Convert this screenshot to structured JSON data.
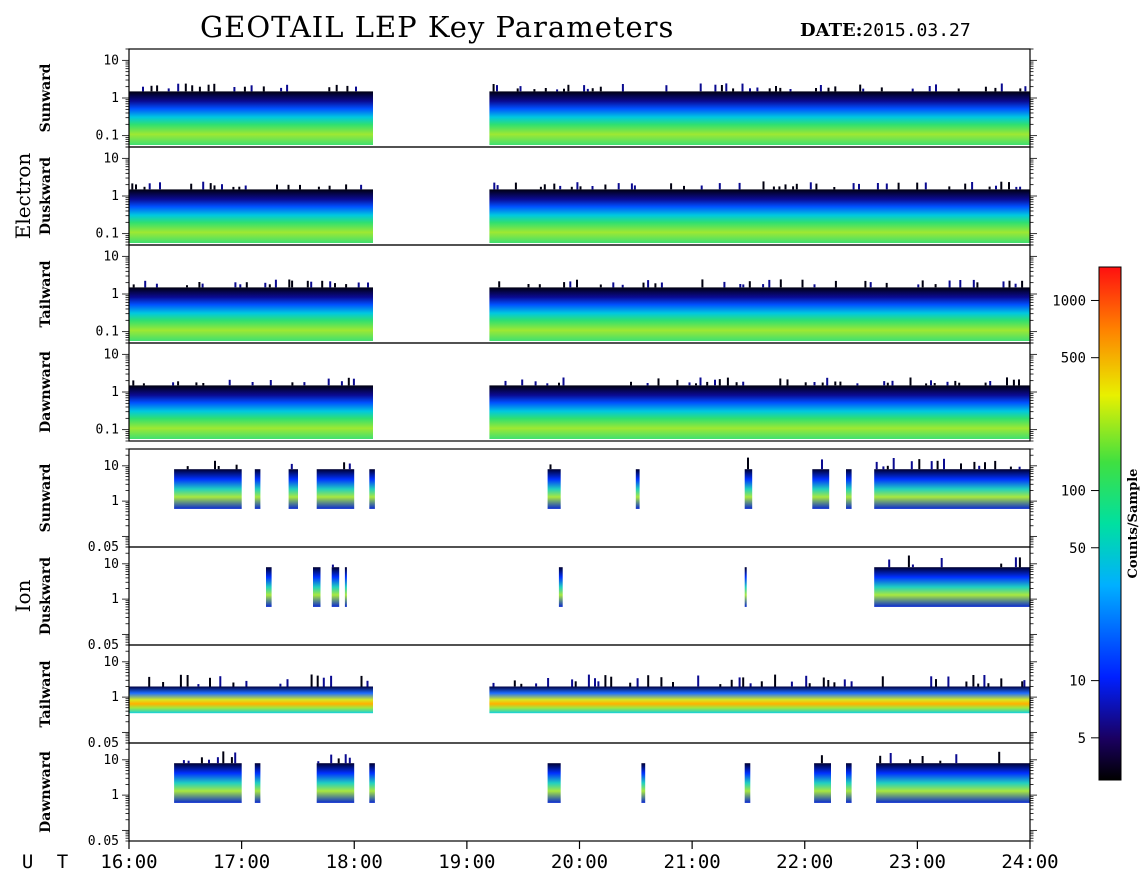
{
  "header": {
    "title": "GEOTAIL LEP Key Parameters",
    "date_label": "DATE:",
    "date_value": "2015.03.27"
  },
  "chart_data": {
    "type": "heatmap",
    "title": "GEOTAIL LEP Key Parameters",
    "date": "2015.03.27",
    "x_axis": {
      "label": "U T",
      "range": [
        "16:00",
        "24:00"
      ],
      "ticks": [
        "16:00",
        "17:00",
        "18:00",
        "19:00",
        "20:00",
        "21:00",
        "22:00",
        "23:00",
        "24:00"
      ]
    },
    "data_gap": [
      "18:10",
      "19:12"
    ],
    "groups": [
      {
        "name": "Electron",
        "y_range": [
          0.05,
          20
        ],
        "y_ticks": [
          "10",
          "1",
          "0.1"
        ],
        "panels": [
          {
            "name": "Sunward",
            "coverage": [
              [
                "16:00",
                "18:10"
              ],
              [
                "19:12",
                "24:00"
              ]
            ]
          },
          {
            "name": "Duskward",
            "coverage": [
              [
                "16:00",
                "18:10"
              ],
              [
                "19:12",
                "24:00"
              ]
            ]
          },
          {
            "name": "Tailward",
            "coverage": [
              [
                "16:00",
                "18:10"
              ],
              [
                "19:12",
                "24:00"
              ]
            ]
          },
          {
            "name": "Dawnward",
            "coverage": [
              [
                "16:00",
                "18:10"
              ],
              [
                "19:12",
                "24:00"
              ]
            ]
          }
        ]
      },
      {
        "name": "Ion",
        "y_range": [
          0.05,
          30
        ],
        "y_ticks": [
          "10",
          "1",
          "0.05"
        ],
        "panels": [
          {
            "name": "Sunward",
            "coverage": [
              [
                "16:24",
                "17:00"
              ],
              [
                "17:07",
                "17:10"
              ],
              [
                "17:25",
                "17:30"
              ],
              [
                "17:40",
                "18:00"
              ],
              [
                "18:08",
                "18:11"
              ],
              [
                "19:43",
                "19:50"
              ],
              [
                "20:30",
                "20:32"
              ],
              [
                "21:28",
                "21:32"
              ],
              [
                "22:04",
                "22:13"
              ],
              [
                "22:22",
                "22:25"
              ],
              [
                "22:37",
                "24:00"
              ]
            ]
          },
          {
            "name": "Duskward",
            "coverage": [
              [
                "17:13",
                "17:16"
              ],
              [
                "17:38",
                "17:42"
              ],
              [
                "17:48",
                "17:52"
              ],
              [
                "17:55",
                "17:56"
              ],
              [
                "19:49",
                "19:51"
              ],
              [
                "21:28",
                "21:29"
              ],
              [
                "22:37",
                "24:00"
              ]
            ]
          },
          {
            "name": "Tailward",
            "coverage": [
              [
                "16:00",
                "18:10"
              ],
              [
                "19:12",
                "24:00"
              ]
            ]
          },
          {
            "name": "Dawnward",
            "coverage": [
              [
                "16:24",
                "17:00"
              ],
              [
                "17:07",
                "17:10"
              ],
              [
                "17:40",
                "18:00"
              ],
              [
                "18:08",
                "18:11"
              ],
              [
                "19:43",
                "19:50"
              ],
              [
                "20:33",
                "20:35"
              ],
              [
                "21:28",
                "21:31"
              ],
              [
                "22:05",
                "22:14"
              ],
              [
                "22:22",
                "22:25"
              ],
              [
                "22:38",
                "24:00"
              ]
            ]
          }
        ]
      }
    ],
    "colorbar": {
      "label": "Counts/Sample",
      "scale": "log",
      "range": [
        3,
        1500
      ],
      "ticks": [
        "1000",
        "500",
        "100",
        "50",
        "10",
        "5"
      ]
    }
  }
}
